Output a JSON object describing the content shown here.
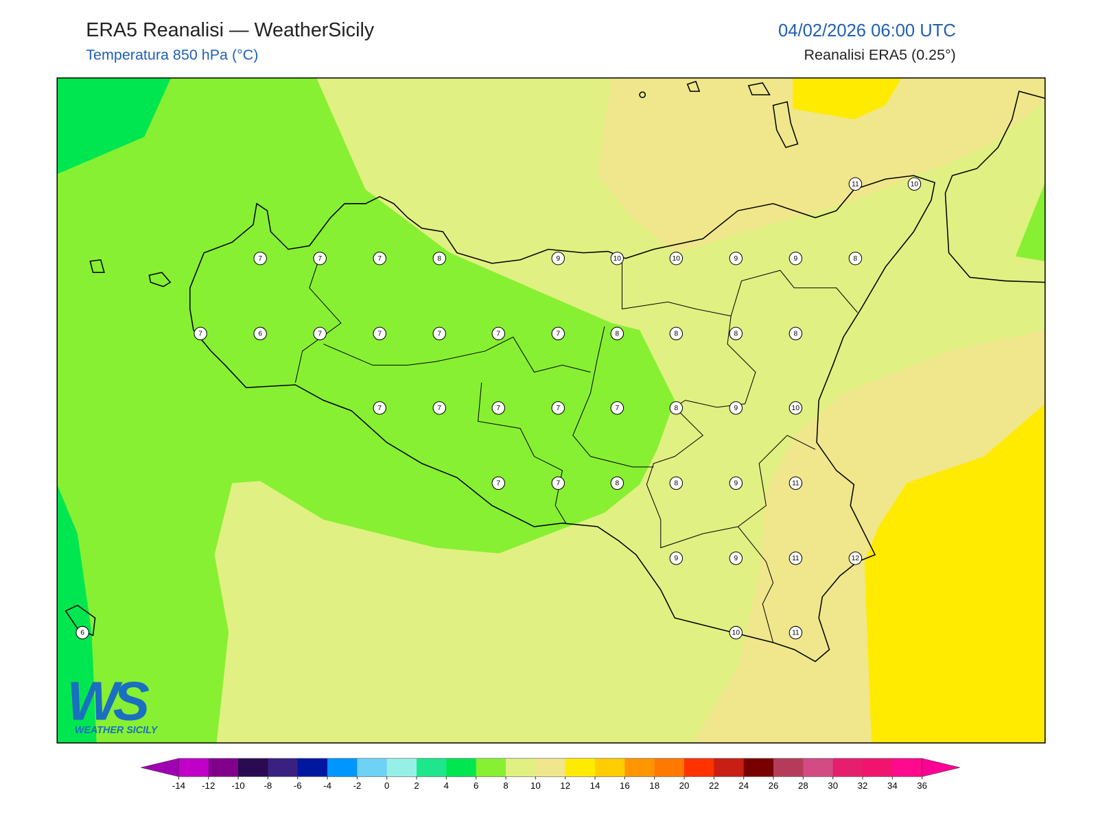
{
  "header": {
    "title": "ERA5 Reanalisi — WeatherSicily",
    "subtitle": "Temperatura 850 hPa (°C)",
    "datetime": "04/02/2026 06:00 UTC",
    "source": "Reanalisi ERA5 (0.25°)"
  },
  "map": {
    "points": [
      11,
      10,
      7,
      7,
      7,
      8,
      9,
      10,
      10,
      9,
      9,
      8,
      7,
      6,
      7,
      7,
      7,
      7,
      7,
      8,
      8,
      8,
      8,
      7,
      7,
      7,
      7,
      7,
      8,
      9,
      10,
      7,
      7,
      8,
      8,
      9,
      11,
      9,
      9,
      11,
      12,
      6,
      10,
      11
    ]
  },
  "colorbar": {
    "ticks": [
      -14,
      -12,
      -10,
      -8,
      -6,
      -4,
      -2,
      0,
      2,
      4,
      6,
      8,
      10,
      12,
      14,
      16,
      18,
      20,
      22,
      24,
      26,
      28,
      30,
      32,
      34,
      36
    ],
    "under_color": "#a000b4",
    "over_color": "#ff0096",
    "colors": [
      "#c000c8",
      "#80008c",
      "#2a0a50",
      "#3a2080",
      "#0018a0",
      "#0096ff",
      "#6ed2f5",
      "#96f0e6",
      "#1ee68c",
      "#00e650",
      "#87f032",
      "#e1f082",
      "#f0e68c",
      "#ffeb00",
      "#ffcd00",
      "#ff9600",
      "#ff7800",
      "#ff3200",
      "#c81e14",
      "#780000",
      "#b43c5a",
      "#d24b82",
      "#e61e6e",
      "#f0146e",
      "#ff0a8c"
    ]
  },
  "logo": {
    "mark": "WS",
    "text": "WEATHER SICILY"
  }
}
